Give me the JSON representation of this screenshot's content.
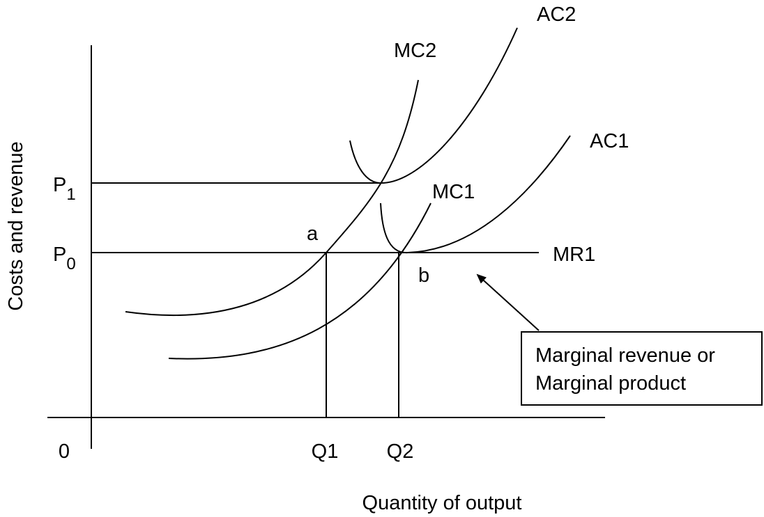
{
  "axes": {
    "y_label": "Costs and revenue",
    "x_label": "Quantity of output",
    "origin": "0"
  },
  "x_marks": {
    "q1": "Q1",
    "q2": "Q2"
  },
  "y_marks": {
    "p1": {
      "main": "P",
      "sub": "1"
    },
    "p0": {
      "main": "P",
      "sub": "0"
    }
  },
  "points": {
    "a": "a",
    "b": "b"
  },
  "curves": {
    "mr1": "MR1",
    "mc1": "MC1",
    "mc2": "MC2",
    "ac1": "AC1",
    "ac2": "AC2"
  },
  "callout": {
    "line1": "Marginal revenue or",
    "line2": "Marginal product"
  }
}
